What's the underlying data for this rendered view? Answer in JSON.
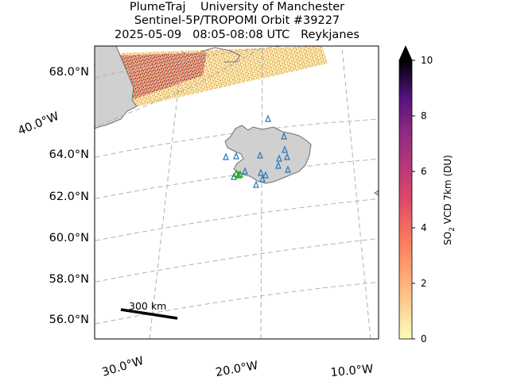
{
  "title": {
    "line1": "PlumeTraj    University of Manchester",
    "line2": "Sentinel-5P/TROPOMI Orbit #39227",
    "line3": "2025-05-09   08:05-08:08 UTC   Reykjanes"
  },
  "map": {
    "lat_labels": [
      "68.0°N",
      "64.0°N",
      "62.0°N",
      "60.0°N",
      "58.0°N",
      "56.0°N"
    ],
    "lon_labels": [
      "30.0°W",
      "20.0°W",
      "10.0°W"
    ],
    "side_lon_label": "40.0°W",
    "scale_bar": {
      "label": "300 km",
      "length_km": 300
    },
    "land_color": "#d0d0d0",
    "grid_color": "#b0b0b0",
    "volcano_marker_color": "#2277bb",
    "source_marker_color": "#22aa22"
  },
  "colorbar": {
    "label_prefix": "SO",
    "label_sub": "2",
    "label_suffix": " VCD 7km (DU)",
    "min": 0,
    "max": 10,
    "extend": "max",
    "tick_labels": [
      "0",
      "2",
      "4",
      "6",
      "8",
      "10"
    ],
    "colormap": "magma_r"
  }
}
